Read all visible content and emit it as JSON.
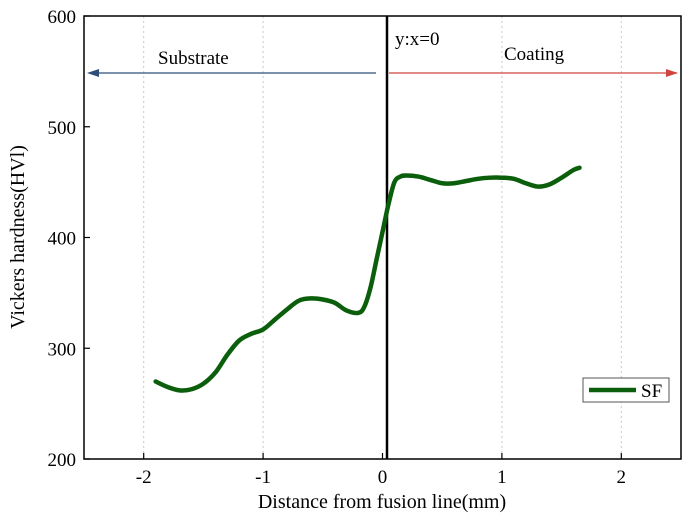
{
  "chart_data": {
    "type": "line",
    "xlabel": "Distance from fusion line(mm)",
    "ylabel": "Vickers hardness(HVl)",
    "xlim": [
      -2.5,
      2.5
    ],
    "ylim": [
      200,
      600
    ],
    "xticks": [
      -2,
      -1,
      0,
      1,
      2
    ],
    "xtick_labels": [
      "-2",
      "-1",
      "0",
      "1",
      "2"
    ],
    "yticks": [
      200,
      300,
      400,
      500,
      600
    ],
    "ytick_labels": [
      "200",
      "300",
      "400",
      "500",
      "600"
    ],
    "grid": "vertical dotted",
    "series": [
      {
        "name": "SF",
        "color": "#0b5e0b",
        "x": [
          -1.9,
          -1.8,
          -1.7,
          -1.6,
          -1.5,
          -1.4,
          -1.3,
          -1.2,
          -1.1,
          -1.0,
          -0.9,
          -0.8,
          -0.7,
          -0.6,
          -0.5,
          -0.4,
          -0.3,
          -0.2,
          -0.15,
          -0.1,
          -0.05,
          0.0,
          0.05,
          0.1,
          0.15,
          0.2,
          0.3,
          0.4,
          0.5,
          0.6,
          0.7,
          0.8,
          0.9,
          1.0,
          1.1,
          1.2,
          1.3,
          1.4,
          1.5,
          1.6,
          1.65
        ],
        "y": [
          270,
          265,
          262,
          263,
          268,
          278,
          294,
          307,
          313,
          317,
          326,
          335,
          343,
          345,
          344,
          341,
          334,
          332,
          338,
          355,
          380,
          405,
          430,
          450,
          455,
          456,
          455,
          452,
          449,
          449,
          451,
          453,
          454,
          454,
          453,
          449,
          446,
          448,
          454,
          461,
          463
        ]
      }
    ],
    "annotations": {
      "vline_label": "y:x=0",
      "left_arrow_label": "Substrate",
      "right_arrow_label": "Coating",
      "left_arrow_color": "#2e4f7a",
      "right_arrow_color": "#d0453f"
    },
    "legend": {
      "position": "bottom-right",
      "entries": [
        "SF"
      ]
    }
  }
}
